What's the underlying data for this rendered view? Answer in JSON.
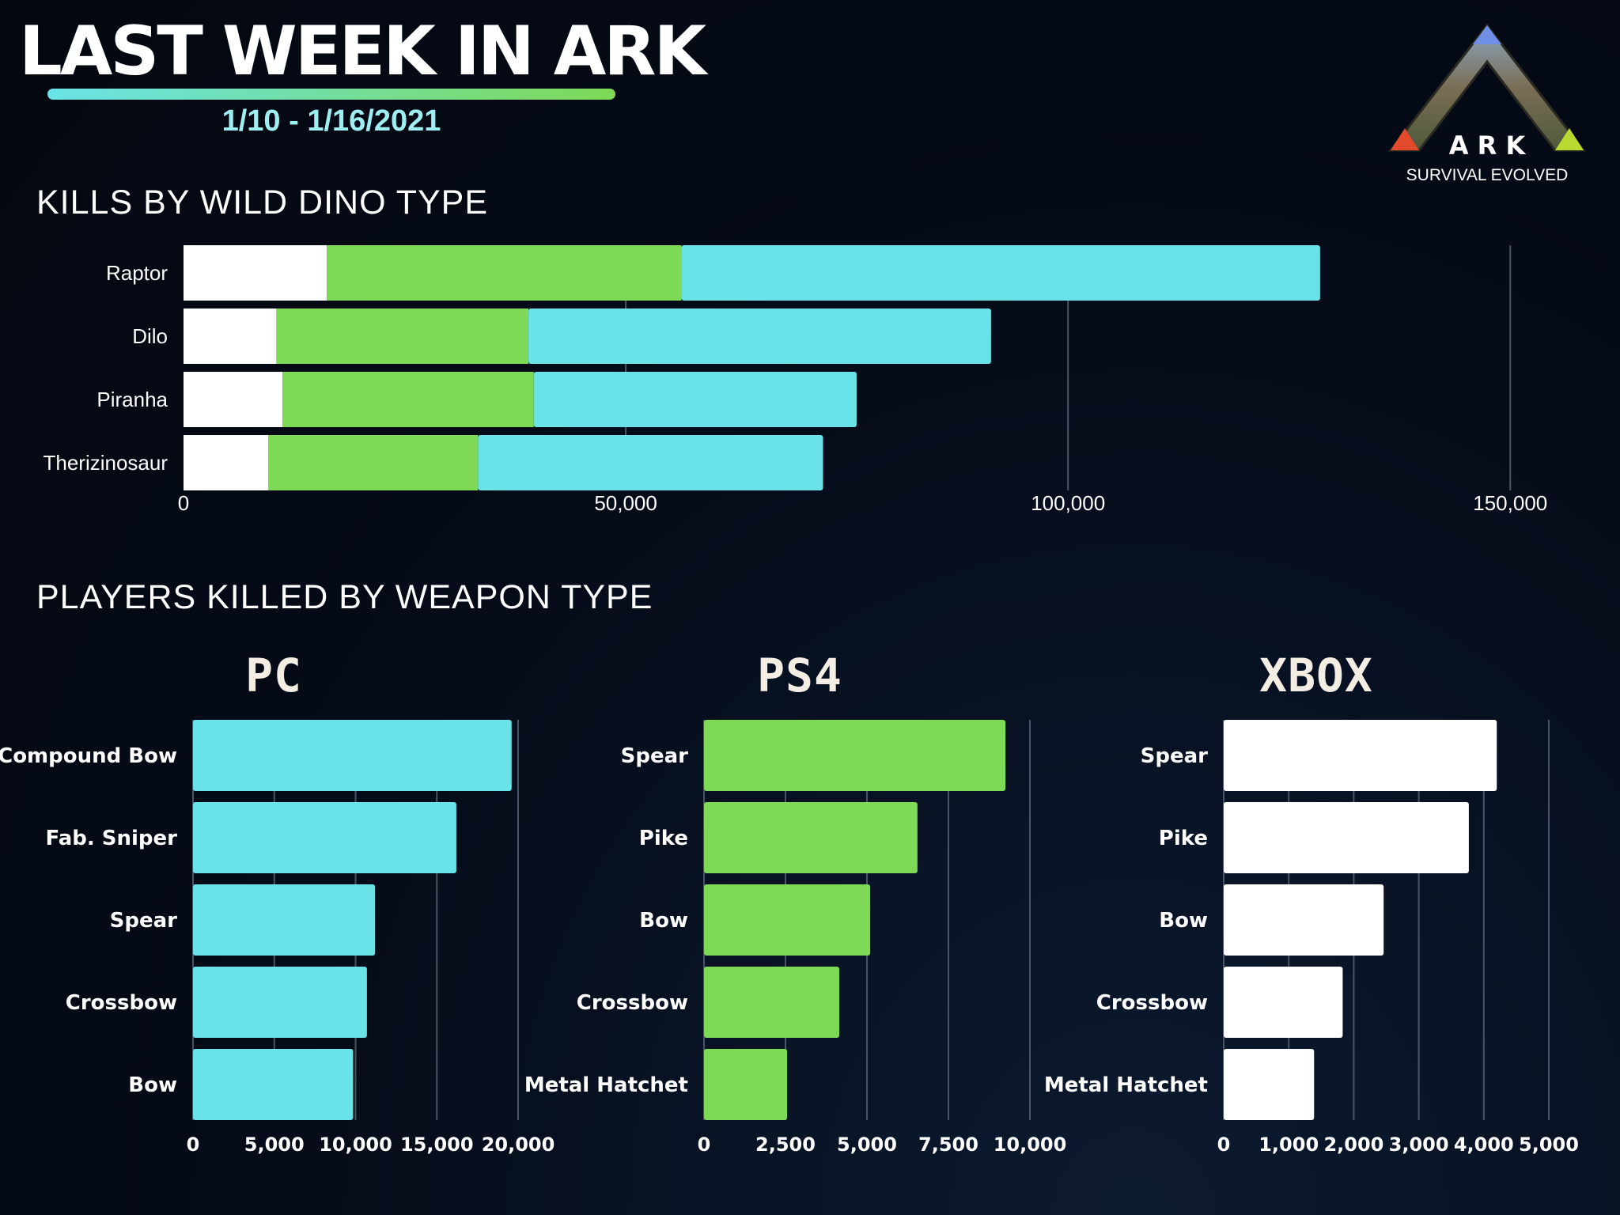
{
  "header": {
    "title": "LAST WEEK IN ARK",
    "date_range": "1/10 - 1/16/2021",
    "gradient_colors": [
      "#69e3e8",
      "#7ed957"
    ]
  },
  "logo": {
    "icon": "ark-logo-icon",
    "wordmark": "A R K",
    "subtitle": "SURVIVAL EVOLVED"
  },
  "sections": {
    "dino_title": "KILLS BY WILD DINO TYPE",
    "weapon_title": "PLAYERS KILLED BY WEAPON TYPE"
  },
  "platforms": {
    "pc": "PC",
    "ps4": "PS4",
    "xbox": "XBOX"
  },
  "colors": {
    "white": "#ffffff",
    "green": "#7ed957",
    "cyan": "#69e3e8",
    "background": "#050b18"
  },
  "chart_data": [
    {
      "id": "dino",
      "type": "bar",
      "orientation": "horizontal",
      "stacked": true,
      "categories": [
        "Raptor",
        "Dilo",
        "Piranha",
        "Therizinosaur"
      ],
      "series": [
        {
          "color": "#ffffff",
          "values": [
            16200,
            10500,
            11200,
            9600
          ]
        },
        {
          "color": "#7ed957",
          "values": [
            40100,
            28500,
            28400,
            23700
          ]
        },
        {
          "color": "#69e3e8",
          "values": [
            72200,
            52300,
            36500,
            39000
          ]
        }
      ],
      "xlim": [
        0,
        165000
      ],
      "ticks": [
        0,
        50000,
        100000,
        150000
      ],
      "tick_labels": [
        "0",
        "50,000",
        "100,000",
        "150,000"
      ],
      "grid": true
    },
    {
      "id": "pc",
      "type": "bar",
      "orientation": "horizontal",
      "title": "PC",
      "categories": [
        "Compound Bow",
        "Fab. Sniper",
        "Spear",
        "Crossbow",
        "Bow"
      ],
      "values": [
        19600,
        16200,
        11200,
        10700,
        9850
      ],
      "color": "#69e3e8",
      "xlim": [
        0,
        20000
      ],
      "ticks": [
        0,
        5000,
        10000,
        15000,
        20000
      ],
      "tick_labels": [
        "0",
        "5,000",
        "10,000",
        "15,000",
        "20,000"
      ],
      "grid": true
    },
    {
      "id": "ps4",
      "type": "bar",
      "orientation": "horizontal",
      "title": "PS4",
      "categories": [
        "Spear",
        "Pike",
        "Bow",
        "Crossbow",
        "Metal Hatchet"
      ],
      "values": [
        9250,
        6550,
        5100,
        4150,
        2550
      ],
      "color": "#7ed957",
      "xlim": [
        0,
        10000
      ],
      "ticks": [
        0,
        2500,
        5000,
        7500,
        10000
      ],
      "tick_labels": [
        "0",
        "2,500",
        "5,000",
        "7,500",
        "10,000"
      ],
      "grid": true
    },
    {
      "id": "xbox",
      "type": "bar",
      "orientation": "horizontal",
      "title": "XBOX",
      "categories": [
        "Spear",
        "Pike",
        "Bow",
        "Crossbow",
        "Metal Hatchet"
      ],
      "values": [
        4200,
        3770,
        2460,
        1830,
        1390
      ],
      "color": "#ffffff",
      "xlim": [
        0,
        5000
      ],
      "ticks": [
        0,
        1000,
        2000,
        3000,
        4000,
        5000
      ],
      "tick_labels": [
        "0",
        "1,000",
        "2,000",
        "3,000",
        "4,000",
        "5,000"
      ],
      "grid": true
    }
  ]
}
